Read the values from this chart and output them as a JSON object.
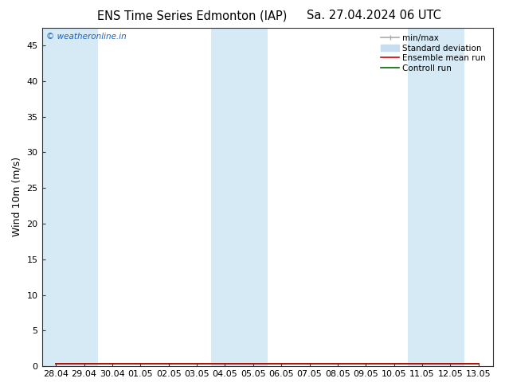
{
  "title_left": "ENS Time Series Edmonton (IAP)",
  "title_right": "Sa. 27.04.2024 06 UTC",
  "ylabel": "Wind 10m (m/s)",
  "ylim": [
    0,
    47.5
  ],
  "yticks": [
    0,
    5,
    10,
    15,
    20,
    25,
    30,
    35,
    40,
    45
  ],
  "x_labels": [
    "28.04",
    "29.04",
    "30.04",
    "01.05",
    "02.05",
    "03.05",
    "04.05",
    "05.05",
    "06.05",
    "07.05",
    "08.05",
    "09.05",
    "10.05",
    "11.05",
    "12.05",
    "13.05"
  ],
  "x_values": [
    0,
    1,
    2,
    3,
    4,
    5,
    6,
    7,
    8,
    9,
    10,
    11,
    12,
    13,
    14,
    15
  ],
  "shaded_x_indices": [
    0,
    1,
    6,
    7,
    13,
    14
  ],
  "band_color": "#d6eaf5",
  "background_color": "#ffffff",
  "plot_bg_color": "#ffffff",
  "watermark": "© weatheronline.in",
  "watermark_color": "#1a5fc8",
  "legend_items": [
    {
      "label": "min/max",
      "color": "#aaaaaa",
      "lw": 1.2
    },
    {
      "label": "Standard deviation",
      "color": "#c8ddf0",
      "lw": 8
    },
    {
      "label": "Ensemble mean run",
      "color": "#cc0000",
      "lw": 1.2
    },
    {
      "label": "Controll run",
      "color": "#006600",
      "lw": 1.2
    }
  ],
  "title_fontsize": 10.5,
  "tick_fontsize": 8,
  "ylabel_fontsize": 9,
  "data_y": [
    0.3,
    0.3,
    0.3,
    0.3,
    0.3,
    0.3,
    0.3,
    0.3,
    0.3,
    0.3,
    0.3,
    0.3,
    0.3,
    0.3,
    0.3,
    0.3
  ]
}
